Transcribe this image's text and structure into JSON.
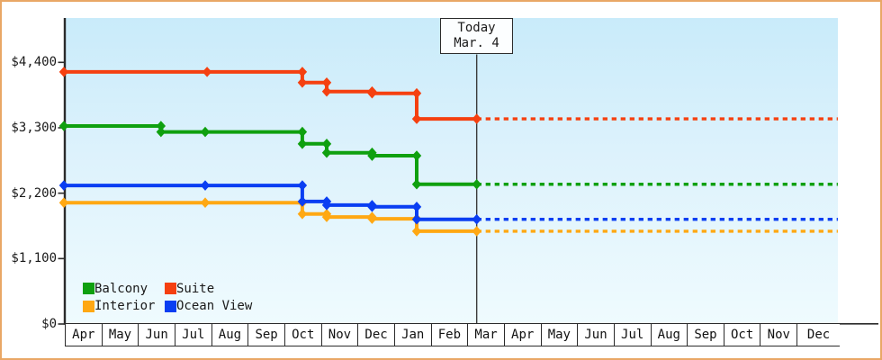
{
  "page": {
    "border_color": "#e9a766",
    "background_color": "#ffffff",
    "axis_color": "#2b2b2b",
    "text_color": "#1a1a1a"
  },
  "chart_data": {
    "type": "line",
    "step_style": "step",
    "title": "",
    "x_axis": {
      "unit": "month",
      "categories": [
        "Apr",
        "May",
        "Jun",
        "Jul",
        "Aug",
        "Sep",
        "Oct",
        "Nov",
        "Dec",
        "Jan",
        "Feb",
        "Mar",
        "Apr",
        "May",
        "Jun",
        "Jul",
        "Aug",
        "Sep",
        "Oct",
        "Nov",
        "Dec"
      ]
    },
    "y_axis": {
      "min": 0,
      "max": 4400,
      "ticks": [
        {
          "label": "$0",
          "value": 0
        },
        {
          "label": "$1,100",
          "value": 1100
        },
        {
          "label": "$2,200",
          "value": 2200
        },
        {
          "label": "$3,300",
          "value": 3300
        },
        {
          "label": "$4,400",
          "value": 4400
        }
      ]
    },
    "plot_background": {
      "top_color": "#c9ebfa",
      "bottom_color": "#effbfe"
    },
    "today_marker": {
      "line1": "Today",
      "line2": "Mar. 4",
      "month_offset": 10.96
    },
    "projection": {
      "style": "dashed",
      "end_month_offset": 20.59
    },
    "series": [
      {
        "name": "Interior",
        "color": "#ffa813",
        "projection_value": 1560,
        "points": [
          [
            -0.05,
            2040
          ],
          [
            3.72,
            2040
          ],
          [
            6.31,
            2040
          ],
          [
            6.31,
            1850
          ],
          [
            6.96,
            1850
          ],
          [
            6.96,
            1800
          ],
          [
            8.17,
            1800
          ],
          [
            8.17,
            1770
          ],
          [
            9.36,
            1770
          ],
          [
            9.36,
            1560
          ],
          [
            10.96,
            1560
          ]
        ]
      },
      {
        "name": "Ocean View",
        "color": "#0a3ef2",
        "projection_value": 1760,
        "points": [
          [
            -0.05,
            2330
          ],
          [
            3.72,
            2330
          ],
          [
            6.31,
            2330
          ],
          [
            6.31,
            2060
          ],
          [
            6.96,
            2060
          ],
          [
            6.96,
            2000
          ],
          [
            8.17,
            2000
          ],
          [
            8.17,
            1970
          ],
          [
            9.36,
            1970
          ],
          [
            9.36,
            1760
          ],
          [
            10.96,
            1760
          ]
        ]
      },
      {
        "name": "Balcony",
        "color": "#0fa00f",
        "projection_value": 2350,
        "points": [
          [
            -0.05,
            3330
          ],
          [
            2.54,
            3330
          ],
          [
            2.54,
            3230
          ],
          [
            3.72,
            3230
          ],
          [
            6.31,
            3230
          ],
          [
            6.31,
            3030
          ],
          [
            6.96,
            3030
          ],
          [
            6.96,
            2880
          ],
          [
            8.17,
            2880
          ],
          [
            8.17,
            2830
          ],
          [
            9.36,
            2830
          ],
          [
            9.36,
            2350
          ],
          [
            10.96,
            2350
          ]
        ]
      },
      {
        "name": "Suite",
        "color": "#f54010",
        "projection_value": 3450,
        "points": [
          [
            -0.05,
            4240
          ],
          [
            3.77,
            4240
          ],
          [
            6.31,
            4240
          ],
          [
            6.31,
            4060
          ],
          [
            6.96,
            4060
          ],
          [
            6.96,
            3910
          ],
          [
            8.17,
            3910
          ],
          [
            8.17,
            3880
          ],
          [
            9.36,
            3880
          ],
          [
            9.36,
            3450
          ],
          [
            10.96,
            3450
          ]
        ]
      }
    ],
    "legend": {
      "position": "bottom-left",
      "items": [
        {
          "label": "Balcony",
          "color": "#0fa00f"
        },
        {
          "label": "Suite",
          "color": "#f54010"
        },
        {
          "label": "Interior",
          "color": "#ffa813"
        },
        {
          "label": "Ocean View",
          "color": "#0a3ef2"
        }
      ]
    }
  }
}
